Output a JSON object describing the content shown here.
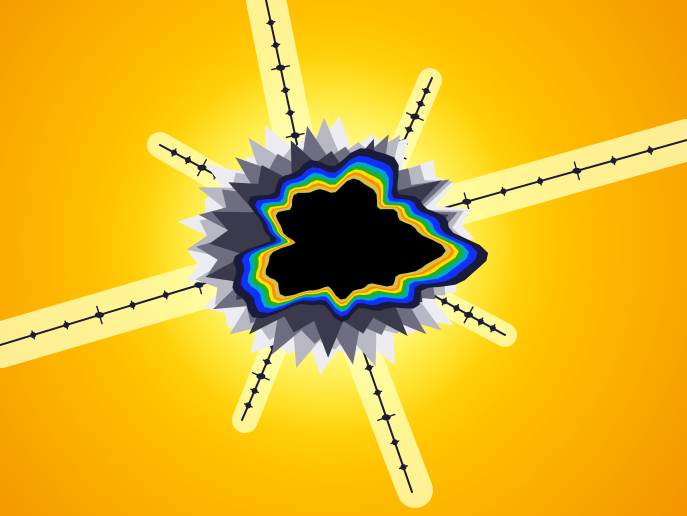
{
  "image": {
    "subject": "mandelbrot-minibrot",
    "palette": {
      "background_outer": "#f08a00",
      "background_mid": "#ffb000",
      "background_inner": "#ffe800",
      "glow": "#ffffb0",
      "halo_light": "#f0f0f0",
      "halo_gray": "#9a9aa8",
      "band_dark": "#1a1a3a",
      "band_blue": "#1030ff",
      "band_cyan": "#00a0c0",
      "band_green": "#20b020",
      "band_yellow": "#ffe000",
      "band_orange": "#ff8000",
      "core": "#000000"
    }
  }
}
